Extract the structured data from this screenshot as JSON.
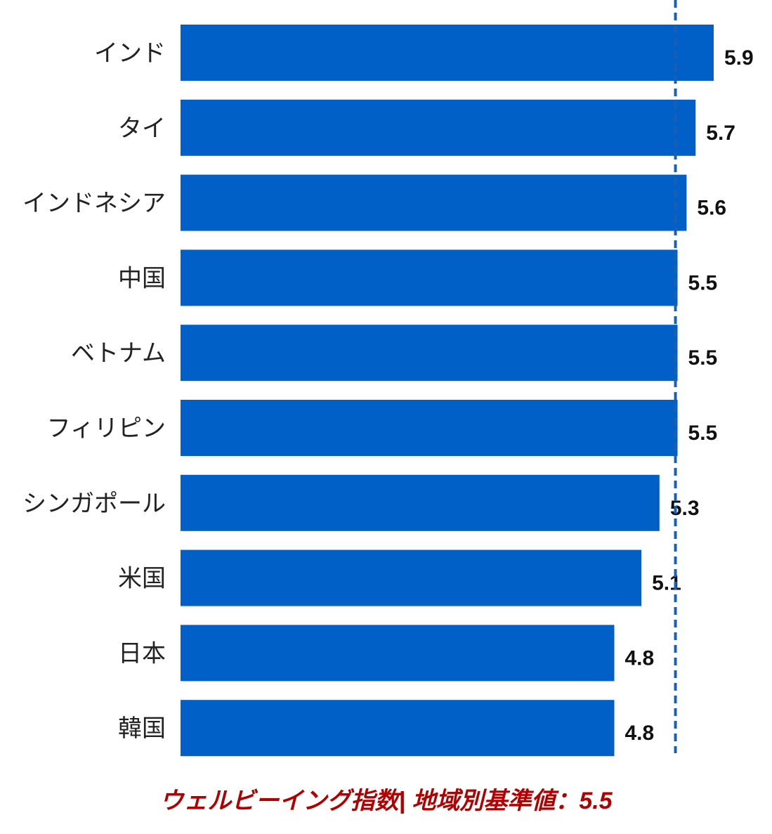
{
  "chart_data": {
    "type": "bar",
    "orientation": "horizontal",
    "categories": [
      "インド",
      "タイ",
      "インドネシア",
      "中国",
      "ベトナム",
      "フィリピン",
      "シンガポール",
      "米国",
      "日本",
      "韓国"
    ],
    "values": [
      5.9,
      5.7,
      5.6,
      5.5,
      5.5,
      5.5,
      5.3,
      5.1,
      4.8,
      4.8
    ],
    "value_labels": [
      "5.9",
      "5.7",
      "5.6",
      "5.5",
      "5.5",
      "5.5",
      "5.3",
      "5.1",
      "4.8",
      "4.8"
    ],
    "reference_line": {
      "value": 5.5,
      "style": "dashed"
    },
    "caption": "ウェルビーイング指数| 地域別基準値：5.5",
    "xlim": [
      0,
      5.9
    ],
    "grid": false,
    "legend": "none",
    "colors": {
      "bar": "#0060C8",
      "reference_line": "#1A60B0",
      "caption": "#B00000"
    }
  }
}
